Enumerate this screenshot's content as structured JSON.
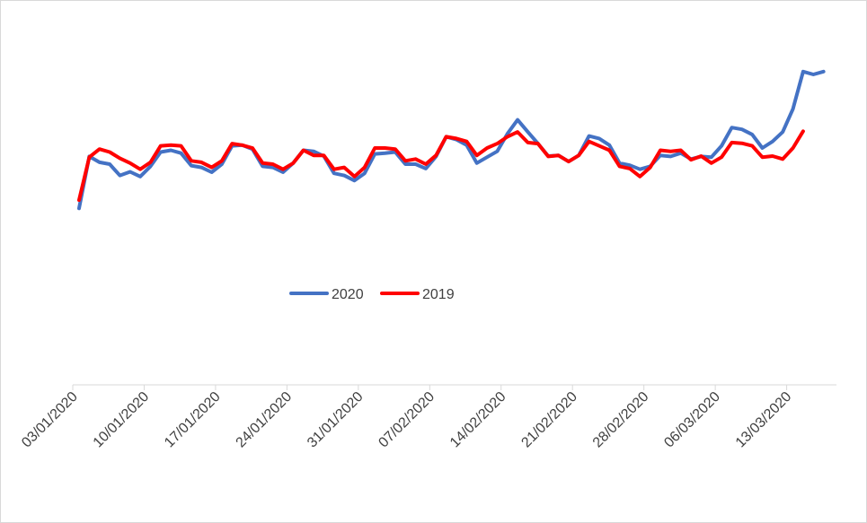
{
  "chart_data": {
    "type": "line",
    "title": "",
    "xlabel": "",
    "ylabel": "",
    "grid": false,
    "legend_placement": "center-left",
    "x": [
      "03/01/2020",
      "04/01/2020",
      "05/01/2020",
      "06/01/2020",
      "07/01/2020",
      "08/01/2020",
      "09/01/2020",
      "10/01/2020",
      "11/01/2020",
      "12/01/2020",
      "13/01/2020",
      "14/01/2020",
      "15/01/2020",
      "16/01/2020",
      "17/01/2020",
      "18/01/2020",
      "19/01/2020",
      "20/01/2020",
      "21/01/2020",
      "22/01/2020",
      "23/01/2020",
      "24/01/2020",
      "25/01/2020",
      "26/01/2020",
      "27/01/2020",
      "28/01/2020",
      "29/01/2020",
      "30/01/2020",
      "31/01/2020",
      "01/02/2020",
      "02/02/2020",
      "03/02/2020",
      "04/02/2020",
      "05/02/2020",
      "06/02/2020",
      "07/02/2020",
      "08/02/2020",
      "09/02/2020",
      "10/02/2020",
      "11/02/2020",
      "12/02/2020",
      "13/02/2020",
      "14/02/2020",
      "15/02/2020",
      "16/02/2020",
      "17/02/2020",
      "18/02/2020",
      "19/02/2020",
      "20/02/2020",
      "21/02/2020",
      "22/02/2020",
      "23/02/2020",
      "24/02/2020",
      "25/02/2020",
      "26/02/2020",
      "27/02/2020",
      "28/02/2020",
      "29/02/2020",
      "01/03/2020",
      "02/03/2020",
      "03/03/2020",
      "04/03/2020",
      "05/03/2020",
      "06/03/2020",
      "07/03/2020",
      "08/03/2020",
      "09/03/2020",
      "10/03/2020",
      "11/03/2020",
      "12/03/2020",
      "13/03/2020",
      "14/03/2020",
      "15/03/2020",
      "16/03/2020",
      "17/03/2020"
    ],
    "x_tick_labels": [
      "03/01/2020",
      "10/01/2020",
      "17/01/2020",
      "24/01/2020",
      "31/01/2020",
      "07/02/2020",
      "14/02/2020",
      "21/02/2020",
      "28/02/2020",
      "06/03/2020",
      "13/03/2020"
    ],
    "ylim": [
      0,
      100
    ],
    "series": [
      {
        "name": "2020",
        "color": "#4472C4",
        "values": [
          48.2,
          62.4,
          60.8,
          60.3,
          57.2,
          58.2,
          56.9,
          59.7,
          63.6,
          64.1,
          63.3,
          59.9,
          59.4,
          58.1,
          60.3,
          65.3,
          65.5,
          64.4,
          59.7,
          59.4,
          58.1,
          60.6,
          64.1,
          63.8,
          62.5,
          57.8,
          57.2,
          55.8,
          57.8,
          63.1,
          63.3,
          63.6,
          60.3,
          60.3,
          59.1,
          62.4,
          67.8,
          67.0,
          65.5,
          60.6,
          62.2,
          63.8,
          68.6,
          72.4,
          69.1,
          65.9,
          62.5,
          62.7,
          61.0,
          62.7,
          68.0,
          67.3,
          65.5,
          60.6,
          60.0,
          58.9,
          59.7,
          62.7,
          62.4,
          63.3,
          61.7,
          62.4,
          62.2,
          65.3,
          70.3,
          69.8,
          68.4,
          64.7,
          66.5,
          69.1,
          75.4,
          85.6,
          84.8,
          85.6,
          null
        ],
        "note_last": null
      },
      {
        "name": "2019",
        "color": "#FF0000",
        "values": [
          50.5,
          62.2,
          64.4,
          63.6,
          61.9,
          60.6,
          58.9,
          60.8,
          65.3,
          65.5,
          65.3,
          61.2,
          60.8,
          59.4,
          61.2,
          65.9,
          65.5,
          64.7,
          60.6,
          60.3,
          58.9,
          60.6,
          64.1,
          62.7,
          62.7,
          58.9,
          59.4,
          56.9,
          59.4,
          64.7,
          64.7,
          64.4,
          61.2,
          61.7,
          60.3,
          62.7,
          67.8,
          67.3,
          66.5,
          62.7,
          64.7,
          65.9,
          67.8,
          69.1,
          66.2,
          65.9,
          62.4,
          62.7,
          61.0,
          62.7,
          66.5,
          65.3,
          64.1,
          59.7,
          59.1,
          56.9,
          59.4,
          64.1,
          63.8,
          64.1,
          61.5,
          62.5,
          60.6,
          62.2,
          66.2,
          66.0,
          65.3,
          62.2,
          62.5,
          61.7,
          64.7,
          69.3,
          null,
          null,
          null
        ]
      }
    ]
  }
}
